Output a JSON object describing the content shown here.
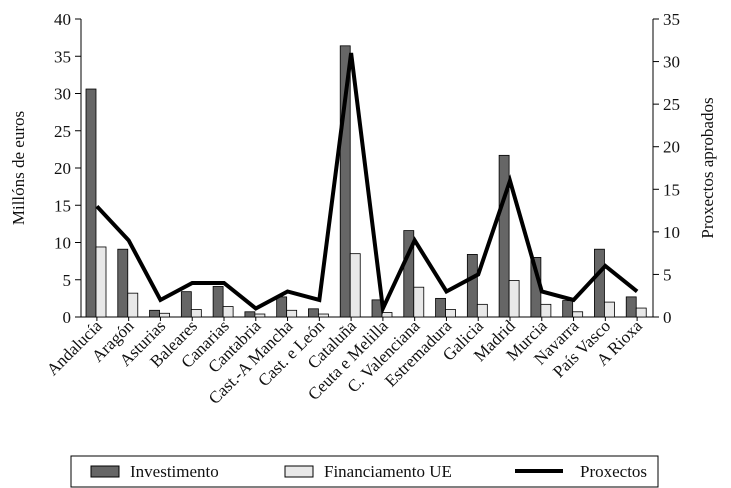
{
  "chart_data": {
    "type": "bar",
    "categories": [
      "Andalucía",
      "Aragón",
      "Asturias",
      "Baleares",
      "Canarias",
      "Cantabria",
      "Cast.-A Mancha",
      "Cast. e León",
      "Cataluña",
      "Ceuta e Melilla",
      "C. Valenciana",
      "Estremadura",
      "Galicia",
      "Madrid",
      "Murcia",
      "Navarra",
      "País Vasco",
      "A Rioxa"
    ],
    "ylabel": "Millóns de euros",
    "y2label": "Proxectos aprobados",
    "ylim": [
      0,
      40
    ],
    "y2lim": [
      0,
      35
    ],
    "yticks": [
      0,
      5,
      10,
      15,
      20,
      25,
      30,
      35,
      40
    ],
    "y2ticks": [
      0,
      5,
      10,
      15,
      20,
      25,
      30,
      35
    ],
    "series": [
      {
        "name": "Investimento",
        "type": "bar",
        "axis": "left",
        "color": "#666666",
        "values": [
          30.6,
          9.1,
          0.9,
          3.4,
          4.1,
          0.7,
          2.7,
          1.1,
          36.4,
          2.3,
          11.6,
          2.5,
          8.4,
          21.7,
          8.0,
          2.2,
          9.1,
          2.7
        ]
      },
      {
        "name": "Financiamento UE",
        "type": "bar",
        "axis": "left",
        "color": "#e8e8e8",
        "values": [
          9.4,
          3.2,
          0.5,
          1.0,
          1.4,
          0.4,
          0.9,
          0.4,
          8.5,
          0.6,
          4.0,
          1.0,
          1.7,
          4.9,
          1.7,
          0.7,
          2.0,
          1.2
        ]
      },
      {
        "name": "Proxectos",
        "type": "line",
        "axis": "right",
        "color": "#000000",
        "values": [
          13,
          9,
          2,
          4,
          4,
          1,
          3,
          2,
          31,
          1,
          9,
          3,
          5,
          16,
          3,
          2,
          6,
          3
        ]
      }
    ],
    "legend": {
      "position": "bottom"
    },
    "grid": false
  }
}
